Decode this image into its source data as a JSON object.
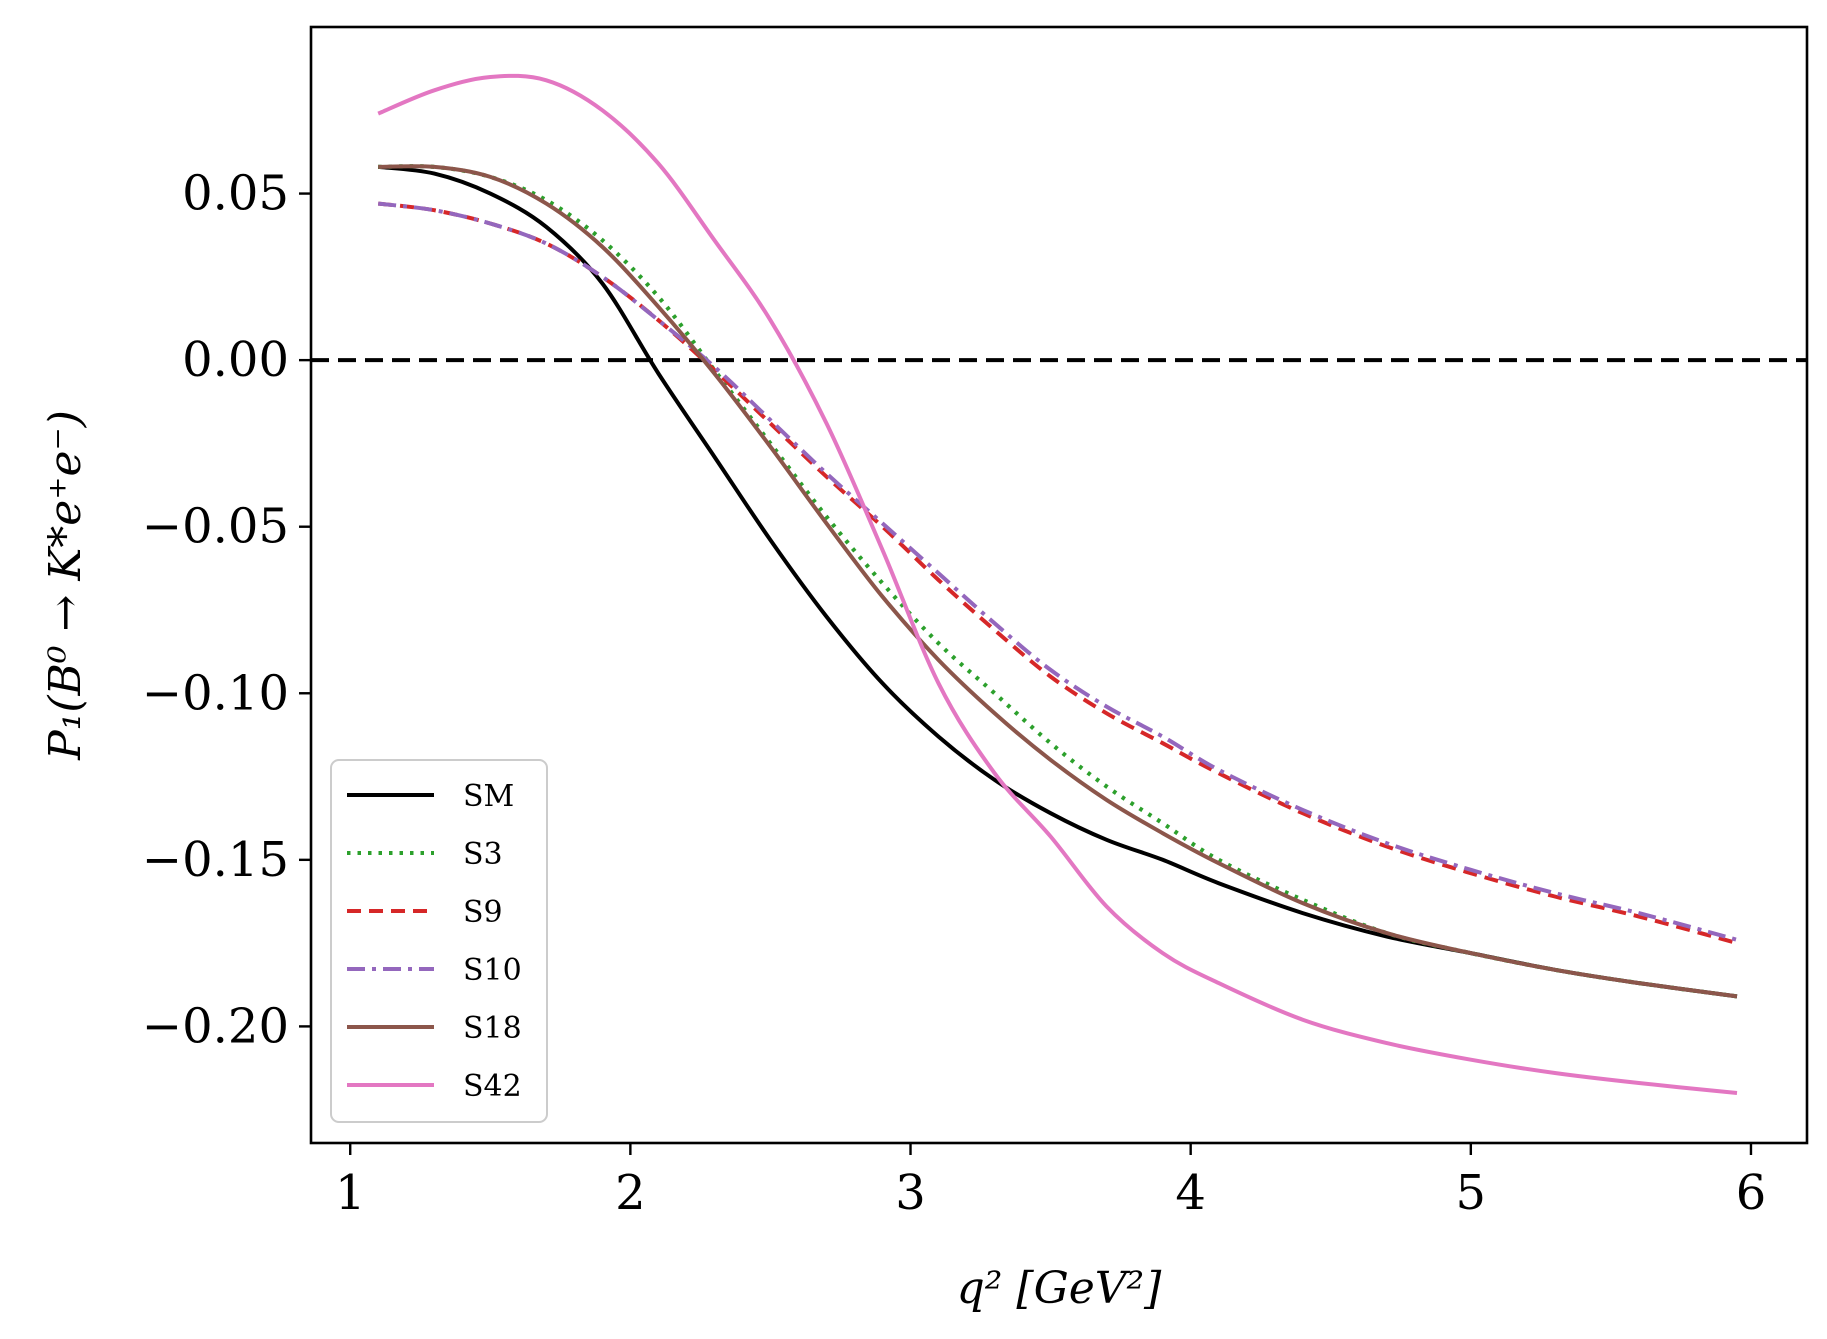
{
  "chart_data": {
    "type": "line",
    "title": "",
    "xlabel": "q² [GeV²]",
    "ylabel": "P₁(B⁰ → K*e⁺e⁻)",
    "xlim": [
      0.86,
      6.2
    ],
    "ylim": [
      -0.235,
      0.1
    ],
    "xticks": [
      1,
      2,
      3,
      4,
      5,
      6
    ],
    "xtick_labels": [
      "1",
      "2",
      "3",
      "4",
      "5",
      "6"
    ],
    "yticks": [
      0.05,
      0.0,
      -0.05,
      -0.1,
      -0.15,
      -0.2
    ],
    "ytick_labels": [
      "0.05",
      "0.00",
      "−0.05",
      "−0.10",
      "−0.15",
      "−0.20"
    ],
    "reference_line": {
      "y": 0.0,
      "style": "dashed",
      "color": "#000000"
    },
    "legend_position": "lower-left",
    "grid": false,
    "x": [
      1.1,
      1.3,
      1.5,
      1.7,
      1.9,
      2.1,
      2.3,
      2.5,
      2.7,
      2.9,
      3.1,
      3.3,
      3.5,
      3.7,
      3.9,
      4.1,
      4.4,
      4.7,
      5.0,
      5.3,
      5.6,
      5.95
    ],
    "series": [
      {
        "name": "SM",
        "color": "#000000",
        "style": "solid",
        "values": [
          0.058,
          0.056,
          0.05,
          0.04,
          0.023,
          -0.004,
          -0.029,
          -0.054,
          -0.077,
          -0.097,
          -0.113,
          -0.126,
          -0.136,
          -0.144,
          -0.15,
          -0.157,
          -0.166,
          -0.173,
          -0.178,
          -0.183,
          -0.187,
          -0.191
        ]
      },
      {
        "name": "S3",
        "color": "#2ca02c",
        "style": "dotted",
        "values": [
          0.058,
          0.058,
          0.055,
          0.048,
          0.036,
          0.019,
          -0.003,
          -0.025,
          -0.047,
          -0.067,
          -0.085,
          -0.1,
          -0.115,
          -0.128,
          -0.139,
          -0.15,
          -0.162,
          -0.172,
          -0.178,
          -0.183,
          -0.187,
          -0.191
        ]
      },
      {
        "name": "S9",
        "color": "#d62728",
        "style": "dashed",
        "values": [
          0.047,
          0.045,
          0.041,
          0.035,
          0.025,
          0.012,
          -0.003,
          -0.019,
          -0.035,
          -0.05,
          -0.066,
          -0.081,
          -0.095,
          -0.106,
          -0.115,
          -0.124,
          -0.136,
          -0.146,
          -0.154,
          -0.161,
          -0.167,
          -0.175
        ]
      },
      {
        "name": "S10",
        "color": "#9467bd",
        "style": "dashdot",
        "values": [
          0.047,
          0.045,
          0.041,
          0.035,
          0.025,
          0.012,
          -0.002,
          -0.018,
          -0.034,
          -0.049,
          -0.064,
          -0.079,
          -0.093,
          -0.104,
          -0.113,
          -0.123,
          -0.135,
          -0.145,
          -0.153,
          -0.16,
          -0.166,
          -0.174
        ]
      },
      {
        "name": "S18",
        "color": "#8c564b",
        "style": "solid",
        "values": [
          0.058,
          0.058,
          0.055,
          0.047,
          0.034,
          0.016,
          -0.004,
          -0.026,
          -0.049,
          -0.071,
          -0.09,
          -0.106,
          -0.12,
          -0.132,
          -0.142,
          -0.151,
          -0.163,
          -0.172,
          -0.178,
          -0.183,
          -0.187,
          -0.191
        ]
      },
      {
        "name": "S42",
        "color": "#e377c2",
        "style": "solid",
        "values": [
          0.074,
          0.081,
          0.085,
          0.084,
          0.075,
          0.059,
          0.036,
          0.012,
          -0.019,
          -0.057,
          -0.097,
          -0.124,
          -0.143,
          -0.164,
          -0.178,
          -0.187,
          -0.198,
          -0.205,
          -0.21,
          -0.214,
          -0.217,
          -0.22
        ]
      }
    ]
  }
}
